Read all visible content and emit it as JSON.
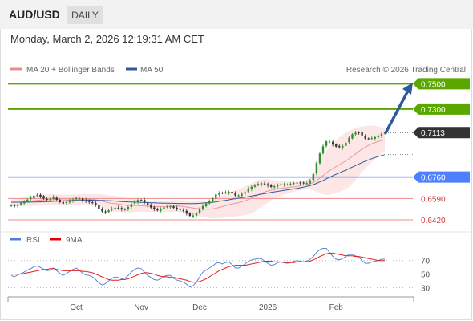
{
  "header": {
    "pair": "AUD/USD",
    "timeframe": "DAILY"
  },
  "timestamp": "Monday, March 2, 2026 12:19:31 AM CET",
  "legend": {
    "ma20": "MA 20 + Bollinger Bands",
    "ma50": "MA 50",
    "credit": "Research © 2026 Trading Central"
  },
  "colors": {
    "green": "#5aa700",
    "blue": "#4d7fff",
    "red": "#f08a8a",
    "ma50": "#2e5a9c",
    "bull": "#2f8f2f",
    "bear": "#333333",
    "arrow": "#2d5a9a"
  },
  "chart_data": [
    {
      "type": "candlestick",
      "ylim": [
        0.635,
        0.756
      ],
      "current_price": "0.7113",
      "x_labels": [
        "Oct",
        "Nov",
        "Dec",
        "2026",
        "Feb"
      ],
      "levels": [
        {
          "label": "0.7500",
          "value": 0.75,
          "style": "resistance"
        },
        {
          "label": "0.7300",
          "value": 0.73,
          "style": "resistance"
        },
        {
          "label": "0.6760",
          "value": 0.676,
          "style": "pivot"
        },
        {
          "label": "0.6590",
          "value": 0.659,
          "style": "support"
        },
        {
          "label": "0.6420",
          "value": 0.642,
          "style": "support"
        }
      ],
      "close_series": [
        0.6535,
        0.6529,
        0.6538,
        0.6554,
        0.6565,
        0.6581,
        0.6596,
        0.6612,
        0.6618,
        0.6605,
        0.6589,
        0.6585,
        0.6585,
        0.66,
        0.658,
        0.656,
        0.6549,
        0.6561,
        0.657,
        0.6582,
        0.6595,
        0.6591,
        0.6574,
        0.6566,
        0.6562,
        0.6554,
        0.6536,
        0.6508,
        0.6488,
        0.648,
        0.6496,
        0.6509,
        0.6516,
        0.6511,
        0.6503,
        0.6505,
        0.6522,
        0.6545,
        0.6563,
        0.6578,
        0.6576,
        0.6557,
        0.6536,
        0.6518,
        0.6504,
        0.6495,
        0.6505,
        0.652,
        0.6525,
        0.6528,
        0.6515,
        0.6503,
        0.6499,
        0.6491,
        0.6469,
        0.6451,
        0.6455,
        0.6471,
        0.6503,
        0.6531,
        0.655,
        0.6568,
        0.6593,
        0.6622,
        0.6634,
        0.6632,
        0.6639,
        0.6643,
        0.6631,
        0.6614,
        0.6614,
        0.6626,
        0.664,
        0.6666,
        0.6683,
        0.6696,
        0.6706,
        0.6711,
        0.6702,
        0.6692,
        0.6682,
        0.6687,
        0.6698,
        0.6703,
        0.6702,
        0.6701,
        0.6705,
        0.6712,
        0.6716,
        0.6713,
        0.671,
        0.6712,
        0.6734,
        0.6784,
        0.6872,
        0.6947,
        0.7004,
        0.7043,
        0.7041,
        0.7017,
        0.7002,
        0.6997,
        0.7007,
        0.7033,
        0.7071,
        0.71,
        0.7112,
        0.7112,
        0.709,
        0.7066,
        0.7061,
        0.7069,
        0.7077,
        0.7082,
        0.7103,
        0.7113
      ],
      "ma20_series": [
        0.656,
        0.656,
        0.6561,
        0.6562,
        0.6564,
        0.6566,
        0.6569,
        0.6572,
        0.6575,
        0.6577,
        0.6579,
        0.658,
        0.658,
        0.6581,
        0.6581,
        0.658,
        0.6579,
        0.6579,
        0.6579,
        0.658,
        0.6581,
        0.6583,
        0.6583,
        0.6584,
        0.6584,
        0.6583,
        0.658,
        0.6575,
        0.6569,
        0.6562,
        0.6556,
        0.6552,
        0.6549,
        0.6545,
        0.6541,
        0.6537,
        0.6535,
        0.6534,
        0.6534,
        0.6534,
        0.6532,
        0.653,
        0.6528,
        0.6526,
        0.6525,
        0.6525,
        0.6525,
        0.6526,
        0.6527,
        0.6529,
        0.653,
        0.653,
        0.6529,
        0.6526,
        0.6522,
        0.6518,
        0.6514,
        0.6511,
        0.6508,
        0.6506,
        0.6505,
        0.6505,
        0.6507,
        0.6512,
        0.6519,
        0.6526,
        0.6533,
        0.654,
        0.6546,
        0.6551,
        0.6557,
        0.6564,
        0.6572,
        0.6581,
        0.6592,
        0.6605,
        0.6619,
        0.6631,
        0.6641,
        0.6649,
        0.6655,
        0.6661,
        0.6666,
        0.667,
        0.6673,
        0.6676,
        0.6679,
        0.6682,
        0.6686,
        0.6691,
        0.6696,
        0.6701,
        0.6707,
        0.6717,
        0.6732,
        0.6751,
        0.6772,
        0.6793,
        0.6811,
        0.6827,
        0.6843,
        0.6858,
        0.6872,
        0.6888,
        0.6905,
        0.6924,
        0.6943,
        0.6963,
        0.6981,
        0.6997,
        0.7011,
        0.7024,
        0.7034,
        0.7042,
        0.705,
        0.7056
      ],
      "ma50_series": [
        0.656,
        0.656,
        0.656,
        0.656,
        0.656,
        0.6561,
        0.6561,
        0.6562,
        0.6563,
        0.6563,
        0.6564,
        0.6565,
        0.6566,
        0.6567,
        0.6568,
        0.6569,
        0.657,
        0.6571,
        0.6572,
        0.6573,
        0.6574,
        0.6575,
        0.6575,
        0.6575,
        0.6576,
        0.6576,
        0.6575,
        0.6574,
        0.6574,
        0.6573,
        0.6572,
        0.6571,
        0.6569,
        0.6567,
        0.6565,
        0.6564,
        0.6563,
        0.6562,
        0.6561,
        0.656,
        0.6559,
        0.6558,
        0.6557,
        0.6556,
        0.6555,
        0.6554,
        0.6553,
        0.6552,
        0.6552,
        0.6551,
        0.6551,
        0.655,
        0.655,
        0.655,
        0.6549,
        0.6549,
        0.6549,
        0.655,
        0.6551,
        0.6553,
        0.6555,
        0.6557,
        0.656,
        0.6563,
        0.6567,
        0.6571,
        0.6575,
        0.6579,
        0.6584,
        0.6588,
        0.6592,
        0.6596,
        0.66,
        0.6605,
        0.6609,
        0.6614,
        0.6619,
        0.6624,
        0.6629,
        0.6633,
        0.6638,
        0.6642,
        0.6646,
        0.665,
        0.6654,
        0.6658,
        0.6662,
        0.6666,
        0.667,
        0.6675,
        0.668,
        0.6686,
        0.6692,
        0.67,
        0.671,
        0.6721,
        0.6733,
        0.6746,
        0.6758,
        0.677,
        0.6782,
        0.6793,
        0.6804,
        0.6815,
        0.6827,
        0.6839,
        0.6851,
        0.6863,
        0.6875,
        0.6886,
        0.6896,
        0.6906,
        0.6915,
        0.6923,
        0.6931,
        0.6938
      ],
      "band_width_series": [
        0.003,
        0.003,
        0.0031,
        0.0033,
        0.0035,
        0.0037,
        0.0039,
        0.0041,
        0.0042,
        0.0043,
        0.0043,
        0.0043,
        0.0043,
        0.0042,
        0.0041,
        0.0041,
        0.0041,
        0.0041,
        0.0041,
        0.0041,
        0.0041,
        0.0041,
        0.004,
        0.004,
        0.004,
        0.0041,
        0.0044,
        0.0049,
        0.0054,
        0.0058,
        0.0061,
        0.0062,
        0.0062,
        0.0061,
        0.006,
        0.0058,
        0.0055,
        0.0053,
        0.0051,
        0.005,
        0.0048,
        0.0046,
        0.0044,
        0.0043,
        0.0043,
        0.0043,
        0.0043,
        0.0044,
        0.0045,
        0.0046,
        0.0047,
        0.0047,
        0.0047,
        0.0047,
        0.0049,
        0.0053,
        0.0056,
        0.0058,
        0.006,
        0.0063,
        0.0067,
        0.007,
        0.0074,
        0.0079,
        0.0085,
        0.009,
        0.0094,
        0.0098,
        0.0101,
        0.0104,
        0.0107,
        0.011,
        0.0113,
        0.0117,
        0.012,
        0.012,
        0.0116,
        0.011,
        0.0102,
        0.0093,
        0.0083,
        0.0074,
        0.0065,
        0.0058,
        0.0052,
        0.0047,
        0.0042,
        0.0039,
        0.0037,
        0.0036,
        0.0036,
        0.0038,
        0.0045,
        0.0062,
        0.009,
        0.012,
        0.015,
        0.0175,
        0.0192,
        0.0203,
        0.021,
        0.0216,
        0.0221,
        0.0224,
        0.0222,
        0.0215,
        0.0205,
        0.0193,
        0.018,
        0.0168,
        0.0157,
        0.0145,
        0.0132,
        0.0118,
        0.0104,
        0.0092
      ]
    },
    {
      "type": "line",
      "ylim": [
        20,
        85
      ],
      "y_ticks": [
        "70",
        "50",
        "30"
      ],
      "series": [
        {
          "name": "RSI",
          "values": [
            48,
            46,
            49,
            51,
            53,
            56,
            58,
            61,
            62,
            60,
            57,
            55,
            56,
            59,
            55,
            51,
            48,
            51,
            54,
            57,
            59,
            56,
            51,
            49,
            48,
            46,
            42,
            37,
            34,
            36,
            40,
            44,
            46,
            45,
            43,
            44,
            48,
            53,
            57,
            59,
            58,
            53,
            48,
            45,
            42,
            41,
            43,
            47,
            48,
            48,
            44,
            41,
            40,
            38,
            35,
            31,
            33,
            38,
            46,
            53,
            56,
            59,
            62,
            66,
            67,
            65,
            67,
            68,
            64,
            59,
            59,
            62,
            65,
            69,
            71,
            72,
            73,
            73,
            69,
            66,
            63,
            64,
            67,
            68,
            67,
            66,
            67,
            69,
            70,
            69,
            68,
            69,
            72,
            76,
            82,
            86,
            88,
            88,
            82,
            76,
            72,
            71,
            73,
            76,
            79,
            79,
            77,
            75,
            70,
            66,
            66,
            68,
            69,
            70,
            72,
            72
          ]
        },
        {
          "name": "9MA",
          "values": [
            50,
            50,
            50,
            50,
            51,
            52,
            53,
            54,
            55,
            56,
            57,
            57,
            58,
            58,
            57,
            56,
            55,
            55,
            55,
            55,
            55,
            55,
            54,
            54,
            53,
            52,
            50,
            48,
            46,
            44,
            42,
            41,
            41,
            41,
            42,
            42,
            43,
            45,
            47,
            49,
            51,
            52,
            52,
            51,
            50,
            48,
            47,
            46,
            46,
            45,
            45,
            44,
            43,
            42,
            41,
            39,
            38,
            38,
            39,
            41,
            43,
            46,
            49,
            52,
            55,
            57,
            59,
            61,
            62,
            63,
            63,
            63,
            63,
            64,
            65,
            66,
            67,
            68,
            69,
            69,
            69,
            68,
            68,
            68,
            67,
            67,
            67,
            67,
            68,
            68,
            68,
            68,
            69,
            71,
            73,
            76,
            78,
            80,
            81,
            81,
            80,
            79,
            78,
            77,
            77,
            77,
            76,
            76,
            75,
            74,
            73,
            72,
            71,
            70,
            70,
            70
          ]
        }
      ]
    }
  ]
}
